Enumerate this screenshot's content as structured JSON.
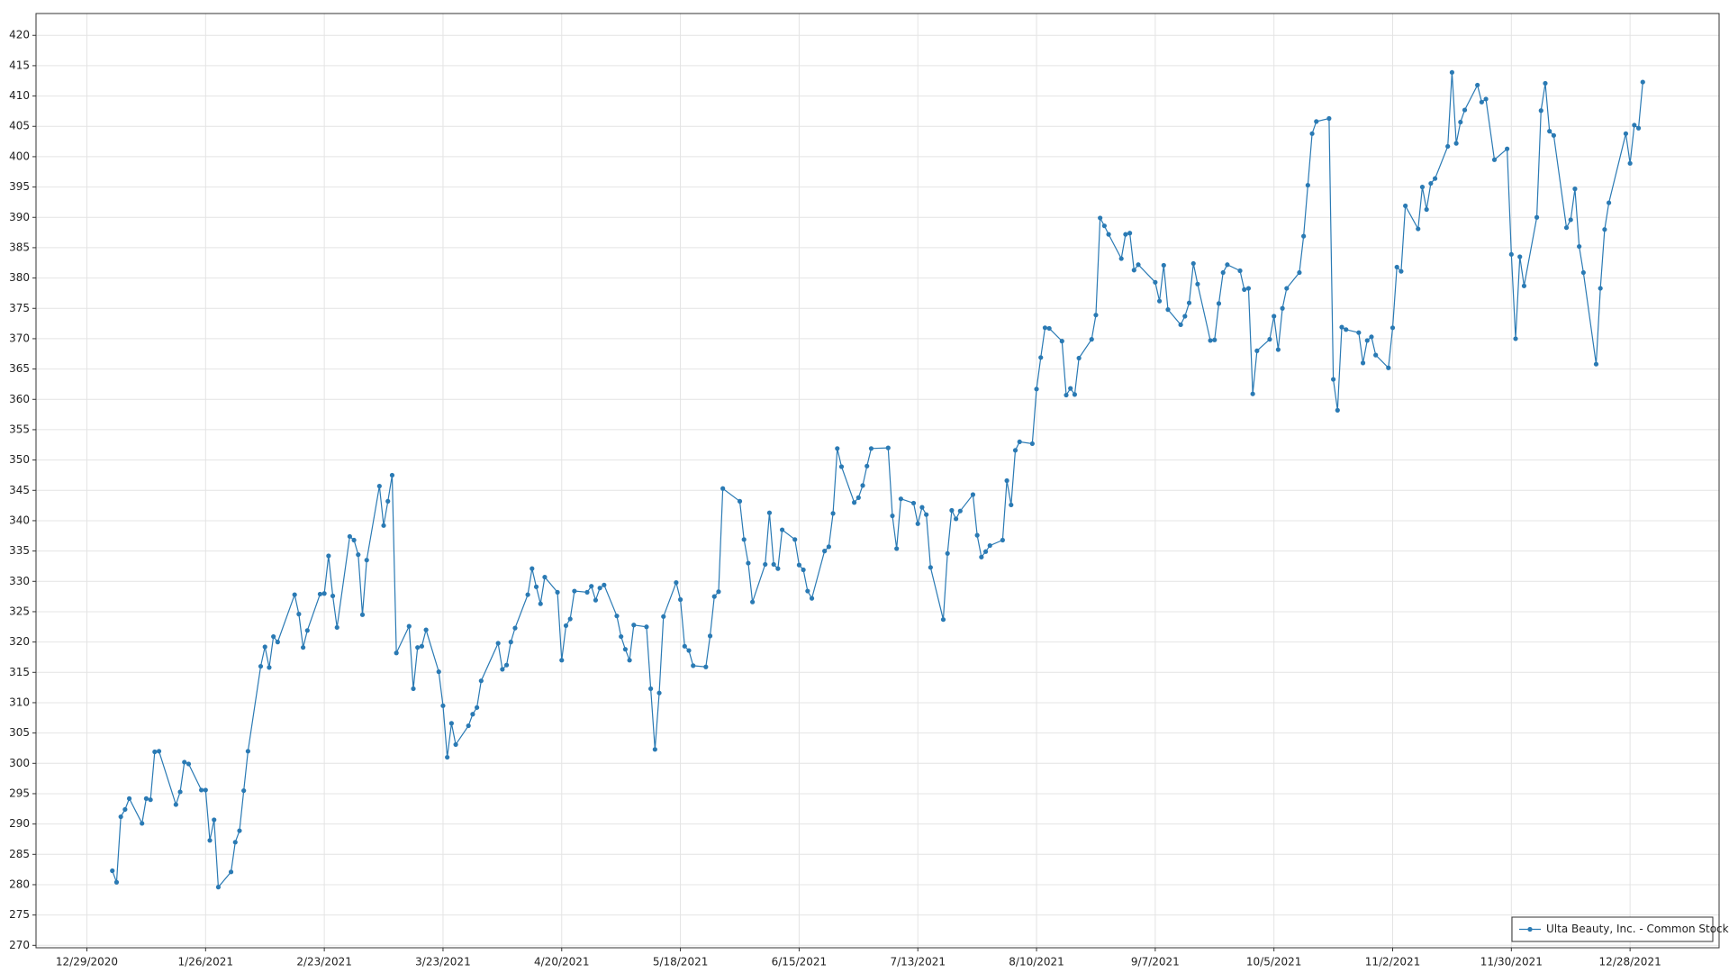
{
  "chart_data": {
    "type": "line",
    "x": [
      "2021-01-04",
      "2021-01-05",
      "2021-01-06",
      "2021-01-07",
      "2021-01-08",
      "2021-01-11",
      "2021-01-12",
      "2021-01-13",
      "2021-01-14",
      "2021-01-15",
      "2021-01-19",
      "2021-01-20",
      "2021-01-21",
      "2021-01-22",
      "2021-01-25",
      "2021-01-26",
      "2021-01-27",
      "2021-01-28",
      "2021-01-29",
      "2021-02-01",
      "2021-02-02",
      "2021-02-03",
      "2021-02-04",
      "2021-02-05",
      "2021-02-08",
      "2021-02-09",
      "2021-02-10",
      "2021-02-11",
      "2021-02-12",
      "2021-02-16",
      "2021-02-17",
      "2021-02-18",
      "2021-02-19",
      "2021-02-22",
      "2021-02-23",
      "2021-02-24",
      "2021-02-25",
      "2021-02-26",
      "2021-03-01",
      "2021-03-02",
      "2021-03-03",
      "2021-03-04",
      "2021-03-05",
      "2021-03-08",
      "2021-03-09",
      "2021-03-10",
      "2021-03-11",
      "2021-03-12",
      "2021-03-15",
      "2021-03-16",
      "2021-03-17",
      "2021-03-18",
      "2021-03-19",
      "2021-03-22",
      "2021-03-23",
      "2021-03-24",
      "2021-03-25",
      "2021-03-26",
      "2021-03-29",
      "2021-03-30",
      "2021-03-31",
      "2021-04-01",
      "2021-04-05",
      "2021-04-06",
      "2021-04-07",
      "2021-04-08",
      "2021-04-09",
      "2021-04-12",
      "2021-04-13",
      "2021-04-14",
      "2021-04-15",
      "2021-04-16",
      "2021-04-19",
      "2021-04-20",
      "2021-04-21",
      "2021-04-22",
      "2021-04-23",
      "2021-04-26",
      "2021-04-27",
      "2021-04-28",
      "2021-04-29",
      "2021-04-30",
      "2021-05-03",
      "2021-05-04",
      "2021-05-05",
      "2021-05-06",
      "2021-05-07",
      "2021-05-10",
      "2021-05-11",
      "2021-05-12",
      "2021-05-13",
      "2021-05-14",
      "2021-05-17",
      "2021-05-18",
      "2021-05-19",
      "2021-05-20",
      "2021-05-21",
      "2021-05-24",
      "2021-05-25",
      "2021-05-26",
      "2021-05-27",
      "2021-05-28",
      "2021-06-01",
      "2021-06-02",
      "2021-06-03",
      "2021-06-04",
      "2021-06-07",
      "2021-06-08",
      "2021-06-09",
      "2021-06-10",
      "2021-06-11",
      "2021-06-14",
      "2021-06-15",
      "2021-06-16",
      "2021-06-17",
      "2021-06-18",
      "2021-06-21",
      "2021-06-22",
      "2021-06-23",
      "2021-06-24",
      "2021-06-25",
      "2021-06-28",
      "2021-06-29",
      "2021-06-30",
      "2021-07-01",
      "2021-07-02",
      "2021-07-06",
      "2021-07-07",
      "2021-07-08",
      "2021-07-09",
      "2021-07-12",
      "2021-07-13",
      "2021-07-14",
      "2021-07-15",
      "2021-07-16",
      "2021-07-19",
      "2021-07-20",
      "2021-07-21",
      "2021-07-22",
      "2021-07-23",
      "2021-07-26",
      "2021-07-27",
      "2021-07-28",
      "2021-07-29",
      "2021-07-30",
      "2021-08-02",
      "2021-08-03",
      "2021-08-04",
      "2021-08-05",
      "2021-08-06",
      "2021-08-09",
      "2021-08-10",
      "2021-08-11",
      "2021-08-12",
      "2021-08-13",
      "2021-08-16",
      "2021-08-17",
      "2021-08-18",
      "2021-08-19",
      "2021-08-20",
      "2021-08-23",
      "2021-08-24",
      "2021-08-25",
      "2021-08-26",
      "2021-08-27",
      "2021-08-30",
      "2021-08-31",
      "2021-09-01",
      "2021-09-02",
      "2021-09-03",
      "2021-09-07",
      "2021-09-08",
      "2021-09-09",
      "2021-09-10",
      "2021-09-13",
      "2021-09-14",
      "2021-09-15",
      "2021-09-16",
      "2021-09-17",
      "2021-09-20",
      "2021-09-21",
      "2021-09-22",
      "2021-09-23",
      "2021-09-24",
      "2021-09-27",
      "2021-09-28",
      "2021-09-29",
      "2021-09-30",
      "2021-10-01",
      "2021-10-04",
      "2021-10-05",
      "2021-10-06",
      "2021-10-07",
      "2021-10-08",
      "2021-10-11",
      "2021-10-12",
      "2021-10-13",
      "2021-10-14",
      "2021-10-15",
      "2021-10-18",
      "2021-10-19",
      "2021-10-20",
      "2021-10-21",
      "2021-10-22",
      "2021-10-25",
      "2021-10-26",
      "2021-10-27",
      "2021-10-28",
      "2021-10-29",
      "2021-11-01",
      "2021-11-02",
      "2021-11-03",
      "2021-11-04",
      "2021-11-05",
      "2021-11-08",
      "2021-11-09",
      "2021-11-10",
      "2021-11-11",
      "2021-11-12",
      "2021-11-15",
      "2021-11-16",
      "2021-11-17",
      "2021-11-18",
      "2021-11-19",
      "2021-11-22",
      "2021-11-23",
      "2021-11-24",
      "2021-11-26",
      "2021-11-29",
      "2021-11-30",
      "2021-12-01",
      "2021-12-02",
      "2021-12-03",
      "2021-12-06",
      "2021-12-07",
      "2021-12-08",
      "2021-12-09",
      "2021-12-10",
      "2021-12-13",
      "2021-12-14",
      "2021-12-15",
      "2021-12-16",
      "2021-12-17",
      "2021-12-20",
      "2021-12-21",
      "2021-12-22",
      "2021-12-23",
      "2021-12-27",
      "2021-12-28",
      "2021-12-29",
      "2021-12-30",
      "2021-12-31"
    ],
    "series": [
      {
        "name": "Ulta Beauty, Inc. - Common Stock",
        "color": "#2a7ab4",
        "values": [
          282.3,
          280.4,
          291.2,
          292.4,
          294.2,
          290.1,
          294.2,
          294.0,
          301.9,
          302.0,
          293.2,
          295.3,
          300.2,
          299.9,
          295.6,
          295.6,
          287.3,
          290.7,
          279.6,
          282.1,
          287.0,
          288.9,
          295.5,
          302.0,
          316.0,
          319.2,
          315.8,
          320.9,
          320.0,
          327.8,
          324.6,
          319.1,
          321.9,
          327.9,
          328.0,
          334.2,
          327.6,
          322.4,
          337.4,
          336.8,
          334.4,
          324.5,
          333.5,
          345.7,
          339.2,
          343.2,
          347.5,
          318.2,
          322.6,
          312.3,
          319.1,
          319.3,
          322.0,
          315.1,
          309.5,
          301.0,
          306.6,
          303.1,
          306.2,
          308.1,
          309.2,
          313.6,
          319.8,
          315.5,
          316.2,
          320.0,
          322.3,
          327.8,
          332.1,
          329.1,
          326.3,
          330.7,
          328.2,
          317.0,
          322.7,
          323.8,
          328.4,
          328.2,
          329.2,
          326.9,
          328.9,
          329.4,
          324.3,
          320.9,
          318.8,
          317.0,
          322.8,
          322.5,
          312.3,
          302.3,
          311.6,
          324.2,
          329.8,
          327.0,
          319.3,
          318.6,
          316.1,
          315.9,
          321.0,
          327.5,
          328.3,
          345.3,
          343.2,
          336.9,
          333.0,
          326.6,
          332.8,
          341.3,
          332.8,
          332.1,
          338.5,
          336.9,
          332.7,
          331.9,
          328.4,
          327.2,
          335.0,
          335.7,
          341.2,
          351.9,
          348.9,
          343.0,
          343.8,
          345.8,
          349.0,
          351.9,
          352.0,
          340.8,
          335.4,
          343.6,
          342.9,
          339.5,
          342.2,
          341.0,
          332.3,
          323.7,
          334.6,
          341.7,
          340.3,
          341.6,
          344.3,
          337.6,
          334.0,
          334.9,
          335.9,
          336.8,
          346.6,
          342.6,
          351.6,
          353.0,
          352.7,
          361.7,
          366.9,
          371.8,
          371.7,
          369.6,
          360.7,
          361.8,
          360.8,
          366.8,
          369.9,
          373.9,
          389.9,
          388.6,
          387.2,
          383.2,
          387.2,
          387.4,
          381.3,
          382.2,
          379.3,
          376.2,
          382.1,
          374.8,
          372.3,
          373.7,
          375.9,
          382.4,
          379.0,
          369.7,
          369.8,
          375.8,
          380.9,
          382.2,
          381.2,
          378.1,
          378.3,
          360.9,
          368.0,
          369.9,
          373.7,
          368.2,
          375.0,
          378.3,
          380.9,
          386.9,
          395.3,
          403.8,
          405.8,
          406.3,
          363.3,
          358.2,
          371.9,
          371.5,
          371.0,
          366.0,
          369.7,
          370.3,
          367.3,
          365.2,
          371.8,
          381.8,
          381.1,
          391.9,
          388.1,
          395.0,
          391.3,
          395.6,
          396.4,
          401.7,
          413.9,
          402.2,
          405.7,
          407.7,
          411.8,
          409.0,
          409.5,
          399.5,
          401.3,
          383.9,
          370.0,
          383.5,
          378.7,
          390.0,
          407.6,
          412.1,
          404.2,
          403.5,
          388.3,
          389.6,
          394.7,
          385.2,
          380.9,
          365.8,
          378.3,
          388.0,
          392.4,
          403.8,
          398.9,
          405.2,
          404.7,
          412.3
        ]
      }
    ],
    "xlim": [
      "2020-12-17",
      "2022-01-18"
    ],
    "xticks": [
      {
        "value": "2020-12-29",
        "label": "12/29/2020"
      },
      {
        "value": "2021-01-26",
        "label": "1/26/2021"
      },
      {
        "value": "2021-02-23",
        "label": "2/23/2021"
      },
      {
        "value": "2021-03-23",
        "label": "3/23/2021"
      },
      {
        "value": "2021-04-20",
        "label": "4/20/2021"
      },
      {
        "value": "2021-05-18",
        "label": "5/18/2021"
      },
      {
        "value": "2021-06-15",
        "label": "6/15/2021"
      },
      {
        "value": "2021-07-13",
        "label": "7/13/2021"
      },
      {
        "value": "2021-08-10",
        "label": "8/10/2021"
      },
      {
        "value": "2021-09-07",
        "label": "9/7/2021"
      },
      {
        "value": "2021-10-05",
        "label": "10/5/2021"
      },
      {
        "value": "2021-11-02",
        "label": "11/2/2021"
      },
      {
        "value": "2021-11-30",
        "label": "11/30/2021"
      },
      {
        "value": "2021-12-28",
        "label": "12/28/2021"
      }
    ],
    "ylim": [
      269.6,
      423.6
    ],
    "yticks": [
      270,
      275,
      280,
      285,
      290,
      295,
      300,
      305,
      310,
      315,
      320,
      325,
      330,
      335,
      340,
      345,
      350,
      355,
      360,
      365,
      370,
      375,
      380,
      385,
      390,
      395,
      400,
      405,
      410,
      415,
      420
    ],
    "grid": true,
    "legend": "lower right"
  }
}
